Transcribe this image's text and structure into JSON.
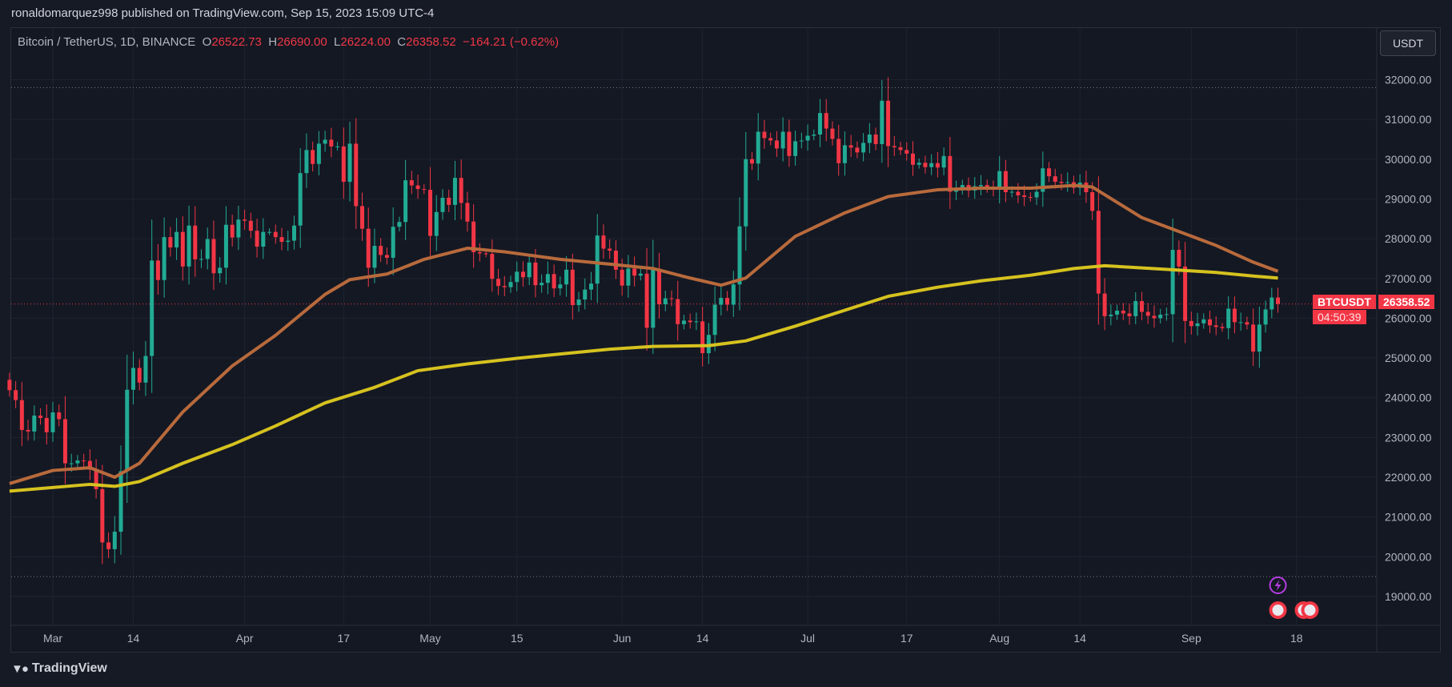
{
  "publisher": "ronaldomarquez998 published on TradingView.com, Sep 15, 2023 15:09 UTC-4",
  "legend": {
    "symbol": "Bitcoin / TetherUS, 1D, BINANCE",
    "o_label": "O",
    "o": "26522.73",
    "h_label": "H",
    "h": "26690.00",
    "l_label": "L",
    "l": "26224.00",
    "c_label": "C",
    "c": "26358.52",
    "change": "−164.21 (−0.62%)"
  },
  "currency_button": "USDT",
  "price_label": {
    "symbol": "BTCUSDT",
    "price": "26358.52",
    "countdown": "04:50:39"
  },
  "footer": {
    "brand": "TradingView"
  },
  "colors": {
    "up": "#22ab94",
    "down": "#f23645",
    "ma_fast": "#b86a3c",
    "ma_slow": "#d6c21f",
    "background": "#141823"
  },
  "icons": [
    "lightning-icon",
    "us-flag-event-icon"
  ],
  "chart_data": {
    "type": "candlestick",
    "ylim": [
      18300,
      32600
    ],
    "y_ticks": [
      "32000.00",
      "31000.00",
      "30000.00",
      "29000.00",
      "28000.00",
      "27000.00",
      "26000.00",
      "25000.00",
      "24000.00",
      "23000.00",
      "22000.00",
      "21000.00",
      "20000.00",
      "19000.00"
    ],
    "x_ticks": [
      {
        "label": "Mar",
        "date": "2023-03-01"
      },
      {
        "label": "14",
        "date": "2023-03-14"
      },
      {
        "label": "Apr",
        "date": "2023-04-01"
      },
      {
        "label": "17",
        "date": "2023-04-17"
      },
      {
        "label": "May",
        "date": "2023-05-01"
      },
      {
        "label": "15",
        "date": "2023-05-15"
      },
      {
        "label": "Jun",
        "date": "2023-06-01"
      },
      {
        "label": "14",
        "date": "2023-06-14"
      },
      {
        "label": "Jul",
        "date": "2023-07-01"
      },
      {
        "label": "17",
        "date": "2023-07-17"
      },
      {
        "label": "Aug",
        "date": "2023-08-01"
      },
      {
        "label": "14",
        "date": "2023-08-14"
      },
      {
        "label": "Sep",
        "date": "2023-09-01"
      },
      {
        "label": "18",
        "date": "2023-09-18"
      }
    ],
    "horizontal_levels": [
      31800,
      19500
    ],
    "last_price": 26358.52,
    "first_open": 24450,
    "closes": [
      [
        "2023-02-22",
        24190
      ],
      [
        "2023-02-23",
        23940
      ],
      [
        "2023-02-24",
        23190
      ],
      [
        "2023-02-25",
        23150
      ],
      [
        "2023-02-26",
        23550
      ],
      [
        "2023-02-27",
        23490
      ],
      [
        "2023-02-28",
        23130
      ],
      [
        "2023-03-01",
        23630
      ],
      [
        "2023-03-02",
        23460
      ],
      [
        "2023-03-03",
        22350
      ],
      [
        "2023-03-04",
        22350
      ],
      [
        "2023-03-05",
        22420
      ],
      [
        "2023-03-06",
        22410
      ],
      [
        "2023-03-07",
        22190
      ],
      [
        "2023-03-08",
        21700
      ],
      [
        "2023-03-09",
        20360
      ],
      [
        "2023-03-10",
        20190
      ],
      [
        "2023-03-11",
        20630
      ],
      [
        "2023-03-12",
        22150
      ],
      [
        "2023-03-13",
        24200
      ],
      [
        "2023-03-14",
        24750
      ],
      [
        "2023-03-15",
        24380
      ],
      [
        "2023-03-16",
        25050
      ],
      [
        "2023-03-17",
        27450
      ],
      [
        "2023-03-18",
        26960
      ],
      [
        "2023-03-19",
        28040
      ],
      [
        "2023-03-20",
        27780
      ],
      [
        "2023-03-21",
        28170
      ],
      [
        "2023-03-22",
        27300
      ],
      [
        "2023-03-23",
        28330
      ],
      [
        "2023-03-24",
        27480
      ],
      [
        "2023-03-25",
        27490
      ],
      [
        "2023-03-26",
        27990
      ],
      [
        "2023-03-27",
        27130
      ],
      [
        "2023-03-28",
        27270
      ],
      [
        "2023-03-29",
        28350
      ],
      [
        "2023-03-30",
        28030
      ],
      [
        "2023-03-31",
        28480
      ],
      [
        "2023-04-01",
        28450
      ],
      [
        "2023-04-02",
        28200
      ],
      [
        "2023-04-03",
        27800
      ],
      [
        "2023-04-04",
        28170
      ],
      [
        "2023-04-05",
        28170
      ],
      [
        "2023-04-06",
        28040
      ],
      [
        "2023-04-07",
        27920
      ],
      [
        "2023-04-08",
        27950
      ],
      [
        "2023-04-09",
        28330
      ],
      [
        "2023-04-10",
        29650
      ],
      [
        "2023-04-11",
        30230
      ],
      [
        "2023-04-12",
        29880
      ],
      [
        "2023-04-13",
        30390
      ],
      [
        "2023-04-14",
        30490
      ],
      [
        "2023-04-15",
        30320
      ],
      [
        "2023-04-16",
        30320
      ],
      [
        "2023-04-17",
        29430
      ],
      [
        "2023-04-18",
        30390
      ],
      [
        "2023-04-19",
        28820
      ],
      [
        "2023-04-20",
        28250
      ],
      [
        "2023-04-21",
        27270
      ],
      [
        "2023-04-22",
        27820
      ],
      [
        "2023-04-23",
        27590
      ],
      [
        "2023-04-24",
        27520
      ],
      [
        "2023-04-25",
        28300
      ],
      [
        "2023-04-26",
        28420
      ],
      [
        "2023-04-27",
        29470
      ],
      [
        "2023-04-28",
        29340
      ],
      [
        "2023-04-29",
        29250
      ],
      [
        "2023-04-30",
        29230
      ],
      [
        "2023-05-01",
        28070
      ],
      [
        "2023-05-02",
        28670
      ],
      [
        "2023-05-03",
        29030
      ],
      [
        "2023-05-04",
        28850
      ],
      [
        "2023-05-05",
        29530
      ],
      [
        "2023-05-06",
        28900
      ],
      [
        "2023-05-07",
        28430
      ],
      [
        "2023-05-08",
        27660
      ],
      [
        "2023-05-09",
        27630
      ],
      [
        "2023-05-10",
        27620
      ],
      [
        "2023-05-11",
        26990
      ],
      [
        "2023-05-12",
        26810
      ],
      [
        "2023-05-13",
        26780
      ],
      [
        "2023-05-14",
        26910
      ],
      [
        "2023-05-15",
        27170
      ],
      [
        "2023-05-16",
        27030
      ],
      [
        "2023-05-17",
        27400
      ],
      [
        "2023-05-18",
        26830
      ],
      [
        "2023-05-19",
        26890
      ],
      [
        "2023-05-20",
        27110
      ],
      [
        "2023-05-21",
        26750
      ],
      [
        "2023-05-22",
        26850
      ],
      [
        "2023-05-23",
        27220
      ],
      [
        "2023-05-24",
        26330
      ],
      [
        "2023-05-25",
        26470
      ],
      [
        "2023-05-26",
        26720
      ],
      [
        "2023-05-27",
        26870
      ],
      [
        "2023-05-28",
        28080
      ],
      [
        "2023-05-29",
        27750
      ],
      [
        "2023-05-30",
        27700
      ],
      [
        "2023-05-31",
        27220
      ],
      [
        "2023-06-01",
        26820
      ],
      [
        "2023-06-02",
        27250
      ],
      [
        "2023-06-03",
        27070
      ],
      [
        "2023-06-04",
        27120
      ],
      [
        "2023-06-05",
        25760
      ],
      [
        "2023-06-06",
        27240
      ],
      [
        "2023-06-07",
        26350
      ],
      [
        "2023-06-08",
        26500
      ],
      [
        "2023-06-09",
        26480
      ],
      [
        "2023-06-10",
        25850
      ],
      [
        "2023-06-11",
        25940
      ],
      [
        "2023-06-12",
        25900
      ],
      [
        "2023-06-13",
        25920
      ],
      [
        "2023-06-14",
        25120
      ],
      [
        "2023-06-15",
        25580
      ],
      [
        "2023-06-16",
        26340
      ],
      [
        "2023-06-17",
        26510
      ],
      [
        "2023-06-18",
        26340
      ],
      [
        "2023-06-19",
        26850
      ],
      [
        "2023-06-20",
        28310
      ],
      [
        "2023-06-21",
        30000
      ],
      [
        "2023-06-22",
        29890
      ],
      [
        "2023-06-23",
        30690
      ],
      [
        "2023-06-24",
        30530
      ],
      [
        "2023-06-25",
        30470
      ],
      [
        "2023-06-26",
        30270
      ],
      [
        "2023-06-27",
        30690
      ],
      [
        "2023-06-28",
        30080
      ],
      [
        "2023-06-29",
        30450
      ],
      [
        "2023-06-30",
        30470
      ],
      [
        "2023-07-01",
        30590
      ],
      [
        "2023-07-02",
        30620
      ],
      [
        "2023-07-03",
        31160
      ],
      [
        "2023-07-04",
        30770
      ],
      [
        "2023-07-05",
        30510
      ],
      [
        "2023-07-06",
        29900
      ],
      [
        "2023-07-07",
        30350
      ],
      [
        "2023-07-08",
        30290
      ],
      [
        "2023-07-09",
        30170
      ],
      [
        "2023-07-10",
        30410
      ],
      [
        "2023-07-11",
        30620
      ],
      [
        "2023-07-12",
        30380
      ],
      [
        "2023-07-13",
        31470
      ],
      [
        "2023-07-14",
        30330
      ],
      [
        "2023-07-15",
        30300
      ],
      [
        "2023-07-16",
        30230
      ],
      [
        "2023-07-17",
        30140
      ],
      [
        "2023-07-18",
        29860
      ],
      [
        "2023-07-19",
        29910
      ],
      [
        "2023-07-20",
        29800
      ],
      [
        "2023-07-21",
        29900
      ],
      [
        "2023-07-22",
        29790
      ],
      [
        "2023-07-23",
        30080
      ],
      [
        "2023-07-24",
        29180
      ],
      [
        "2023-07-25",
        29230
      ],
      [
        "2023-07-26",
        29350
      ],
      [
        "2023-07-27",
        29210
      ],
      [
        "2023-07-28",
        29320
      ],
      [
        "2023-07-29",
        29350
      ],
      [
        "2023-07-30",
        29280
      ],
      [
        "2023-07-31",
        29230
      ],
      [
        "2023-08-01",
        29700
      ],
      [
        "2023-08-02",
        29170
      ],
      [
        "2023-08-03",
        29180
      ],
      [
        "2023-08-04",
        29090
      ],
      [
        "2023-08-05",
        29050
      ],
      [
        "2023-08-06",
        29040
      ],
      [
        "2023-08-07",
        29180
      ],
      [
        "2023-08-08",
        29770
      ],
      [
        "2023-08-09",
        29570
      ],
      [
        "2023-08-10",
        29430
      ],
      [
        "2023-08-11",
        29400
      ],
      [
        "2023-08-12",
        29420
      ],
      [
        "2023-08-13",
        29280
      ],
      [
        "2023-08-14",
        29410
      ],
      [
        "2023-08-15",
        29170
      ],
      [
        "2023-08-16",
        28700
      ],
      [
        "2023-08-17",
        26620
      ],
      [
        "2023-08-18",
        26050
      ],
      [
        "2023-08-19",
        26090
      ],
      [
        "2023-08-20",
        26190
      ],
      [
        "2023-08-21",
        26120
      ],
      [
        "2023-08-22",
        26050
      ],
      [
        "2023-08-23",
        26430
      ],
      [
        "2023-08-24",
        26160
      ],
      [
        "2023-08-25",
        26060
      ],
      [
        "2023-08-26",
        26000
      ],
      [
        "2023-08-27",
        26090
      ],
      [
        "2023-08-28",
        26100
      ],
      [
        "2023-08-29",
        27720
      ],
      [
        "2023-08-30",
        27300
      ],
      [
        "2023-08-31",
        25930
      ],
      [
        "2023-09-01",
        25800
      ],
      [
        "2023-09-02",
        25870
      ],
      [
        "2023-09-03",
        25970
      ],
      [
        "2023-09-04",
        25820
      ],
      [
        "2023-09-05",
        25780
      ],
      [
        "2023-09-06",
        25750
      ],
      [
        "2023-09-07",
        26240
      ],
      [
        "2023-09-08",
        25900
      ],
      [
        "2023-09-09",
        25900
      ],
      [
        "2023-09-10",
        25840
      ],
      [
        "2023-09-11",
        25160
      ],
      [
        "2023-09-12",
        25840
      ],
      [
        "2023-09-13",
        26220
      ],
      [
        "2023-09-14",
        26520
      ],
      [
        "2023-09-15",
        26358.52
      ]
    ],
    "ma_fast": [
      [
        "2023-02-22",
        21840
      ],
      [
        "2023-03-01",
        22170
      ],
      [
        "2023-03-07",
        22240
      ],
      [
        "2023-03-11",
        22000
      ],
      [
        "2023-03-15",
        22350
      ],
      [
        "2023-03-22",
        23640
      ],
      [
        "2023-03-30",
        24800
      ],
      [
        "2023-04-06",
        25570
      ],
      [
        "2023-04-14",
        26600
      ],
      [
        "2023-04-18",
        26970
      ],
      [
        "2023-04-24",
        27110
      ],
      [
        "2023-04-30",
        27480
      ],
      [
        "2023-05-07",
        27760
      ],
      [
        "2023-05-13",
        27670
      ],
      [
        "2023-05-22",
        27480
      ],
      [
        "2023-05-30",
        27360
      ],
      [
        "2023-06-06",
        27250
      ],
      [
        "2023-06-12",
        27010
      ],
      [
        "2023-06-17",
        26830
      ],
      [
        "2023-06-21",
        27010
      ],
      [
        "2023-06-29",
        28060
      ],
      [
        "2023-07-07",
        28650
      ],
      [
        "2023-07-14",
        29060
      ],
      [
        "2023-07-22",
        29230
      ],
      [
        "2023-07-29",
        29270
      ],
      [
        "2023-08-06",
        29270
      ],
      [
        "2023-08-13",
        29340
      ],
      [
        "2023-08-16",
        29300
      ],
      [
        "2023-08-24",
        28530
      ],
      [
        "2023-08-30",
        28180
      ],
      [
        "2023-09-05",
        27830
      ],
      [
        "2023-09-11",
        27410
      ],
      [
        "2023-09-15",
        27180
      ]
    ],
    "ma_slow": [
      [
        "2023-02-22",
        21650
      ],
      [
        "2023-03-07",
        21820
      ],
      [
        "2023-03-11",
        21770
      ],
      [
        "2023-03-15",
        21890
      ],
      [
        "2023-03-22",
        22350
      ],
      [
        "2023-03-30",
        22820
      ],
      [
        "2023-04-06",
        23290
      ],
      [
        "2023-04-14",
        23870
      ],
      [
        "2023-04-22",
        24260
      ],
      [
        "2023-04-29",
        24680
      ],
      [
        "2023-05-07",
        24850
      ],
      [
        "2023-05-15",
        24990
      ],
      [
        "2023-05-22",
        25100
      ],
      [
        "2023-05-30",
        25220
      ],
      [
        "2023-06-06",
        25290
      ],
      [
        "2023-06-15",
        25310
      ],
      [
        "2023-06-21",
        25430
      ],
      [
        "2023-06-29",
        25800
      ],
      [
        "2023-07-07",
        26200
      ],
      [
        "2023-07-14",
        26550
      ],
      [
        "2023-07-22",
        26780
      ],
      [
        "2023-07-29",
        26940
      ],
      [
        "2023-08-06",
        27080
      ],
      [
        "2023-08-13",
        27250
      ],
      [
        "2023-08-18",
        27320
      ],
      [
        "2023-08-29",
        27220
      ],
      [
        "2023-09-05",
        27150
      ],
      [
        "2023-09-11",
        27060
      ],
      [
        "2023-09-15",
        27010
      ]
    ]
  }
}
